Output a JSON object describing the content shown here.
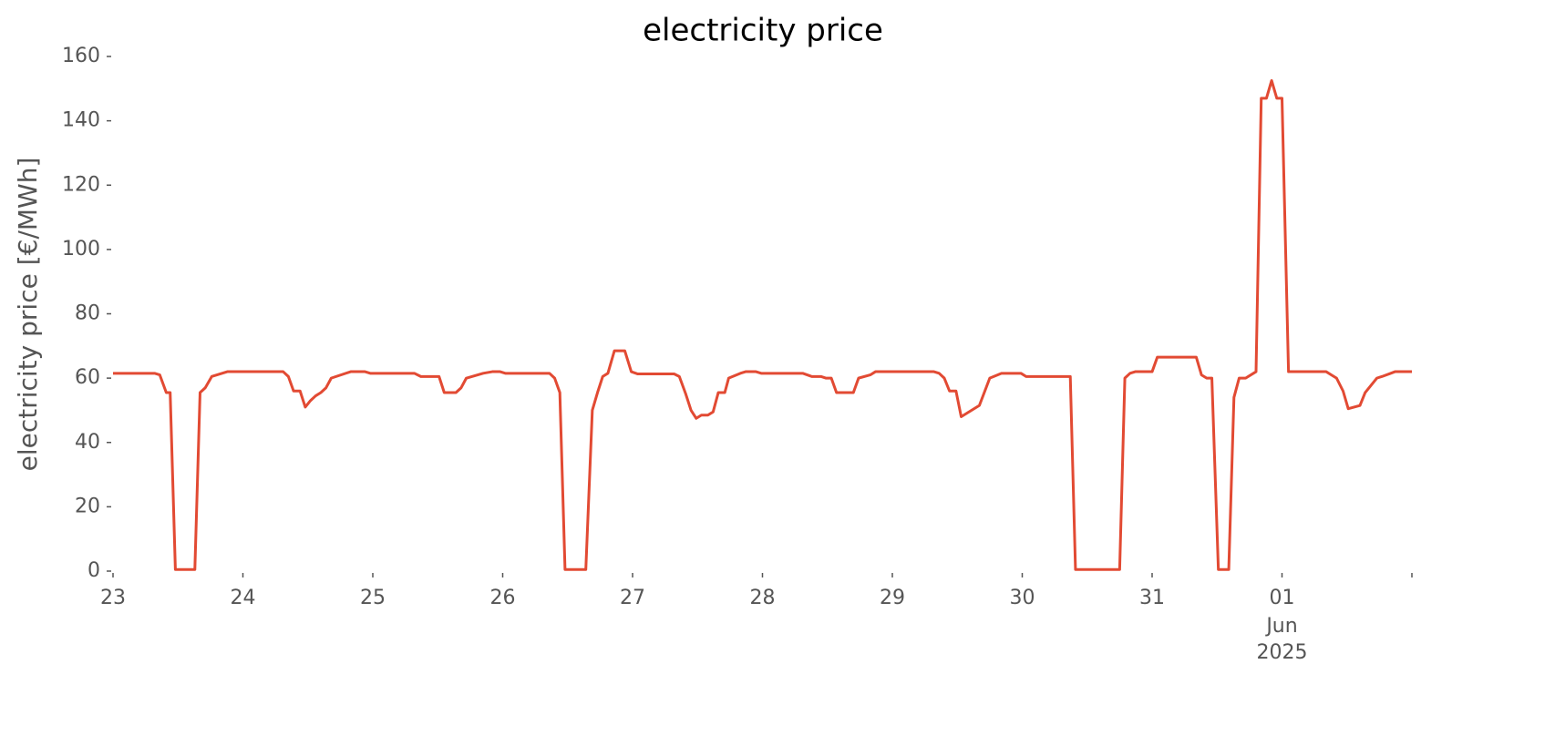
{
  "chart_data": {
    "type": "line",
    "title": "electricity price",
    "ylabel": "electricity price [€/MWh]",
    "x_month_label": "Jun",
    "x_year_label": "2025",
    "xlim": [
      0,
      10
    ],
    "xticks": [
      {
        "value": 0,
        "label": "23"
      },
      {
        "value": 1,
        "label": "24"
      },
      {
        "value": 2,
        "label": "25"
      },
      {
        "value": 3,
        "label": "26"
      },
      {
        "value": 4,
        "label": "27"
      },
      {
        "value": 5,
        "label": "28"
      },
      {
        "value": 6,
        "label": "29"
      },
      {
        "value": 7,
        "label": "30"
      },
      {
        "value": 8,
        "label": "31"
      },
      {
        "value": 9,
        "label": "01"
      },
      {
        "value": 10,
        "label": null
      }
    ],
    "ylim": [
      0,
      160
    ],
    "yticks": [
      0,
      20,
      40,
      60,
      80,
      100,
      120,
      140,
      160
    ],
    "grid": false,
    "x": [
      0,
      0.32,
      0.36,
      0.41,
      0.44,
      0.48,
      0.63,
      0.67,
      0.71,
      0.76,
      0.88,
      1.31,
      1.35,
      1.39,
      1.44,
      1.48,
      1.52,
      1.56,
      1.6,
      1.64,
      1.68,
      1.83,
      1.94,
      1.98,
      2.32,
      2.37,
      2.51,
      2.55,
      2.64,
      2.68,
      2.72,
      2.85,
      2.92,
      2.98,
      3.02,
      3.36,
      3.4,
      3.44,
      3.48,
      3.64,
      3.69,
      3.73,
      3.77,
      3.81,
      3.86,
      3.94,
      3.99,
      4.04,
      4.32,
      4.36,
      4.41,
      4.45,
      4.49,
      4.53,
      4.58,
      4.62,
      4.66,
      4.71,
      4.74,
      4.83,
      4.87,
      4.95,
      4.99,
      5.31,
      5.38,
      5.45,
      5.49,
      5.53,
      5.57,
      5.7,
      5.74,
      5.83,
      5.87,
      6.32,
      6.36,
      6.4,
      6.44,
      6.49,
      6.53,
      6.67,
      6.75,
      6.84,
      6.99,
      7.03,
      7.37,
      7.41,
      7.75,
      7.79,
      7.83,
      7.87,
      8,
      8.04,
      8.34,
      8.38,
      8.42,
      8.46,
      8.51,
      8.59,
      8.63,
      8.67,
      8.72,
      8.8,
      8.84,
      8.88,
      8.92,
      8.96,
      9,
      9.05,
      9.34,
      9.38,
      9.42,
      9.47,
      9.51,
      9.6,
      9.64,
      9.73,
      9.77,
      9.87,
      10
    ],
    "series": [
      {
        "name": "electricity price",
        "color": "#e24a33",
        "values": [
          61.5,
          61.5,
          61,
          55.5,
          55.5,
          0.5,
          0.5,
          55.5,
          57,
          60.5,
          62,
          62,
          60.5,
          56,
          56,
          51,
          53,
          54.5,
          55.5,
          57,
          60,
          62,
          62,
          61.5,
          61.5,
          60.5,
          60.5,
          55.5,
          55.5,
          57,
          60,
          61.5,
          62,
          62,
          61.5,
          61.5,
          60,
          55.5,
          0.5,
          0.5,
          50,
          55.5,
          60.5,
          61.5,
          68.5,
          68.5,
          62,
          61.3,
          61.3,
          60.5,
          55,
          50,
          47.5,
          48.5,
          48.5,
          49.5,
          55.5,
          55.5,
          60,
          61.5,
          62,
          62,
          61.5,
          61.5,
          60.5,
          60.5,
          60,
          60,
          55.5,
          55.5,
          60,
          61,
          62,
          62,
          61.5,
          60,
          56,
          56,
          48,
          51.5,
          60,
          61.5,
          61.5,
          60.5,
          60.5,
          0.5,
          0.5,
          60,
          61.5,
          62,
          62,
          66.5,
          66.5,
          61,
          60,
          60,
          0.5,
          0.5,
          54,
          60,
          60,
          62,
          147,
          147,
          152.5,
          147,
          147,
          62,
          62,
          61,
          60,
          56,
          50.5,
          51.5,
          55.5,
          60,
          60.5,
          62,
          62
        ]
      }
    ]
  }
}
